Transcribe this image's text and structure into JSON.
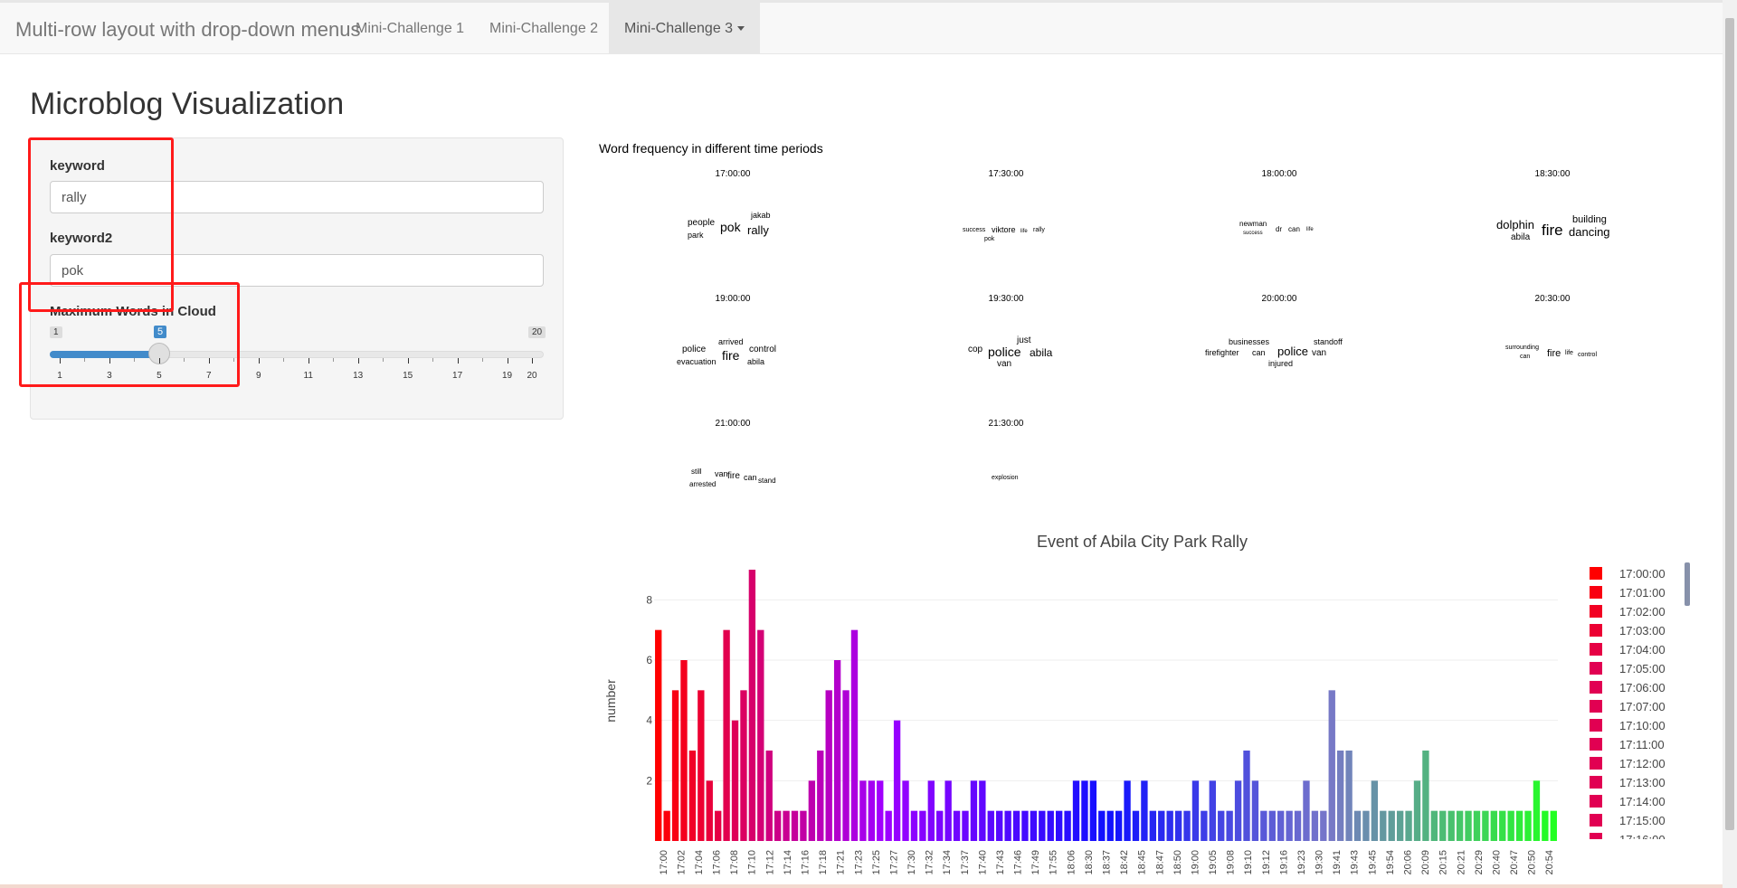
{
  "navbar": {
    "brand": "Multi-row layout with drop-down menus",
    "items": [
      "Mini-Challenge 1",
      "Mini-Challenge 2",
      "Mini-Challenge 3"
    ],
    "active_index": 2
  },
  "page_title": "Microblog Visualization",
  "sidebar": {
    "keyword_label": "keyword",
    "keyword_value": "rally",
    "keyword2_label": "keyword2",
    "keyword2_value": "pok",
    "slider_label": "Maximum Words in Cloud",
    "slider_min": "1",
    "slider_max": "20",
    "slider_value": "5",
    "slider_ticks": [
      "1",
      "3",
      "5",
      "7",
      "9",
      "11",
      "13",
      "15",
      "17",
      "19",
      "20"
    ]
  },
  "wordcloud": {
    "title": "Word frequency in different time periods",
    "panels": [
      {
        "time": "17:00:00",
        "words": [
          {
            "t": "people",
            "s": 10
          },
          {
            "t": "park",
            "s": 9
          },
          {
            "t": "pok",
            "s": 14
          },
          {
            "t": "jakab",
            "s": 9
          },
          {
            "t": "rally",
            "s": 13
          }
        ]
      },
      {
        "time": "17:30:00",
        "words": [
          {
            "t": "success",
            "s": 7
          },
          {
            "t": "viktore",
            "s": 9
          },
          {
            "t": "life",
            "s": 6
          },
          {
            "t": "rally",
            "s": 7
          },
          {
            "t": "pok",
            "s": 7
          }
        ]
      },
      {
        "time": "18:00:00",
        "words": [
          {
            "t": "newman",
            "s": 8
          },
          {
            "t": "success",
            "s": 6
          },
          {
            "t": "dr",
            "s": 8
          },
          {
            "t": "can",
            "s": 8
          },
          {
            "t": "life",
            "s": 6
          }
        ]
      },
      {
        "time": "18:30:00",
        "words": [
          {
            "t": "dolphin",
            "s": 13
          },
          {
            "t": "abila",
            "s": 10
          },
          {
            "t": "fire",
            "s": 17
          },
          {
            "t": "building",
            "s": 11
          },
          {
            "t": "dancing",
            "s": 13
          }
        ]
      },
      {
        "time": "19:00:00",
        "words": [
          {
            "t": "police",
            "s": 10
          },
          {
            "t": "arrived",
            "s": 9
          },
          {
            "t": "control",
            "s": 10
          },
          {
            "t": "evacuation",
            "s": 9
          },
          {
            "t": "fire",
            "s": 14
          },
          {
            "t": "abila",
            "s": 9
          }
        ]
      },
      {
        "time": "19:30:00",
        "words": [
          {
            "t": "cop",
            "s": 10
          },
          {
            "t": "just",
            "s": 10
          },
          {
            "t": "police",
            "s": 14
          },
          {
            "t": "abila",
            "s": 12
          },
          {
            "t": "van",
            "s": 10
          }
        ]
      },
      {
        "time": "20:00:00",
        "words": [
          {
            "t": "businesses",
            "s": 9
          },
          {
            "t": "firefighter",
            "s": 9
          },
          {
            "t": "can",
            "s": 9
          },
          {
            "t": "police",
            "s": 13
          },
          {
            "t": "standoff",
            "s": 9
          },
          {
            "t": "van",
            "s": 10
          },
          {
            "t": "injured",
            "s": 9
          }
        ]
      },
      {
        "time": "20:30:00",
        "words": [
          {
            "t": "surrounding",
            "s": 7
          },
          {
            "t": "can",
            "s": 7
          },
          {
            "t": "fire",
            "s": 11
          },
          {
            "t": "life",
            "s": 7
          },
          {
            "t": "control",
            "s": 7
          }
        ]
      },
      {
        "time": "21:00:00",
        "words": [
          {
            "t": "still",
            "s": 8
          },
          {
            "t": "arrested",
            "s": 8
          },
          {
            "t": "van",
            "s": 9
          },
          {
            "t": "fire",
            "s": 10
          },
          {
            "t": "can",
            "s": 9
          },
          {
            "t": "stand",
            "s": 8
          }
        ]
      },
      {
        "time": "21:30:00",
        "words": [
          {
            "t": "explosion",
            "s": 7
          }
        ]
      }
    ]
  },
  "chart_data": {
    "type": "bar",
    "title": "Event of Abila City Park Rally",
    "xlabel": "",
    "ylabel": "number",
    "ylim": [
      0,
      9.3
    ],
    "yticks": [
      2,
      4,
      6,
      8
    ],
    "grid": true,
    "legend_placement": "right",
    "values": [
      7,
      1,
      5,
      6,
      3,
      5,
      2,
      1,
      7,
      4,
      5,
      9,
      7,
      3,
      1,
      1,
      1,
      1,
      2,
      3,
      5,
      6,
      5,
      7,
      2,
      2,
      2,
      1,
      4,
      2,
      1,
      1,
      2,
      1,
      2,
      1,
      1,
      2,
      2,
      1,
      1,
      1,
      1,
      1,
      1,
      1,
      1,
      1,
      1,
      2,
      2,
      2,
      1,
      1,
      1,
      2,
      1,
      2,
      1,
      1,
      1,
      1,
      1,
      2,
      1,
      2,
      1,
      1,
      2,
      3,
      2,
      1,
      1,
      1,
      1,
      1,
      2,
      1,
      1,
      5,
      3,
      3,
      1,
      1,
      2,
      1,
      1,
      1,
      1,
      2,
      3,
      1,
      1,
      1,
      1,
      1,
      1,
      1,
      1,
      1,
      1,
      1,
      1,
      2,
      1,
      1
    ],
    "tick_labels": [
      "17:00",
      "17:02",
      "17:04",
      "17:06",
      "17:08",
      "17:10",
      "17:12",
      "17:14",
      "17:16",
      "17:18",
      "17:21",
      "17:23",
      "17:25",
      "17:27",
      "17:30",
      "17:32",
      "17:34",
      "17:37",
      "17:40",
      "17:43",
      "17:46",
      "17:49",
      "17:55",
      "18:06",
      "18:30",
      "18:37",
      "18:42",
      "18:45",
      "18:47",
      "18:50",
      "19:00",
      "19:05",
      "19:08",
      "19:10",
      "19:12",
      "19:16",
      "19:23",
      "19:30",
      "19:41",
      "19:43",
      "19:45",
      "19:54",
      "20:06",
      "20:09",
      "20:15",
      "20:21",
      "20:29",
      "20:40",
      "20:47",
      "20:50",
      "20:54"
    ],
    "legend": [
      "17:00:00",
      "17:01:00",
      "17:02:00",
      "17:03:00",
      "17:04:00",
      "17:05:00",
      "17:06:00",
      "17:07:00",
      "17:10:00",
      "17:11:00",
      "17:12:00",
      "17:13:00",
      "17:14:00",
      "17:15:00",
      "17:16:00"
    ],
    "color_start": "#ff0000",
    "color_mid": "#a000ff",
    "color_blue": "#1010ff",
    "color_end": "#22ff22"
  }
}
